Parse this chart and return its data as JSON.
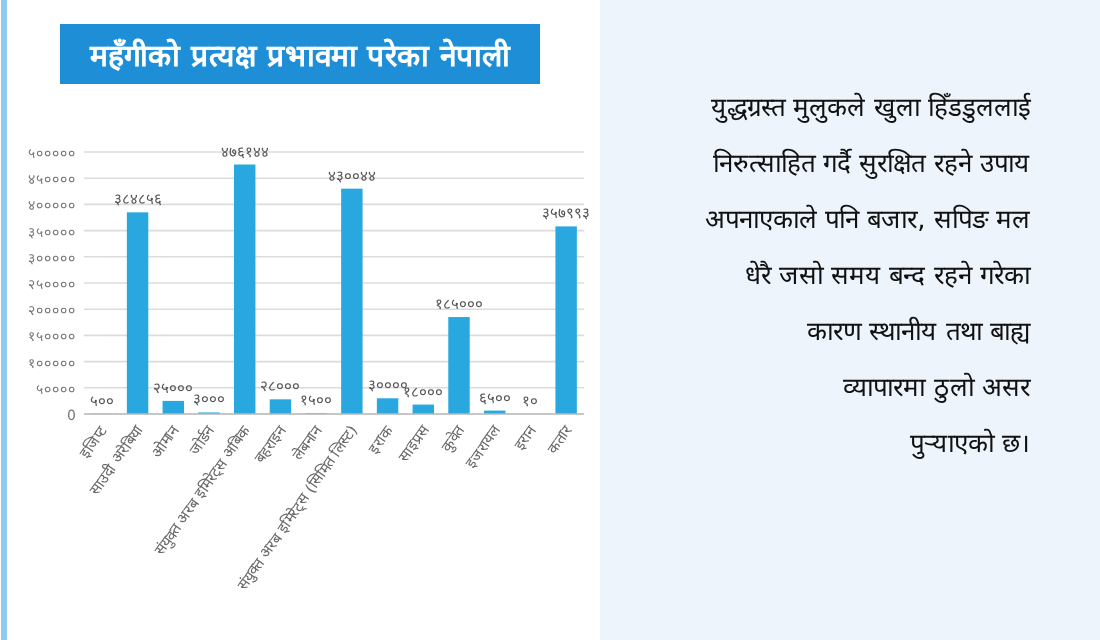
{
  "chart_data": {
    "type": "bar",
    "title": "महँगीको प्रत्यक्ष प्रभावमा परेका नेपाली",
    "categories": [
      "इजिप्ट",
      "साउदी अरेबिया",
      "ओमान",
      "जोर्डन",
      "संयुक्त अरब इमिरेट्स अबिक",
      "बहराइन",
      "लेबनान",
      "संयुक्त अरब इमिरेट्स (सिमित लिस्ट)",
      "इराक",
      "साइप्रस",
      "कुवेत",
      "इजरायल",
      "इरान",
      "कतार"
    ],
    "values": [
      500,
      384856,
      25000,
      3000,
      476144,
      28000,
      1500,
      430044,
      30000,
      18000,
      185000,
      6500,
      10,
      357993
    ],
    "value_labels": [
      "५००",
      "३८४८५६",
      "२५०००",
      "३०००",
      "४७६१४४",
      "२८०००",
      "१५००",
      "४३००४४",
      "३००००",
      "१८०००",
      "१८५०००",
      "६५००",
      "१०",
      "३५७९९३"
    ],
    "color": "#29a8e0",
    "ylim": [
      0,
      500000
    ],
    "yticks": [
      0,
      {
        "value": 50000,
        "label": "५००००"
      },
      {
        "value": 100000,
        "label": "१०००००"
      },
      {
        "value": 150000,
        "label": "१५००००"
      },
      {
        "value": 200000,
        "label": "२०००००"
      },
      {
        "value": 250000,
        "label": "२५००००"
      },
      {
        "value": 300000,
        "label": "३०००००"
      },
      {
        "value": 350000,
        "label": "३५००००"
      },
      {
        "value": 400000,
        "label": "४०००००"
      },
      {
        "value": 450000,
        "label": "४५००००"
      },
      {
        "value": 500000,
        "label": "५०००००"
      }
    ],
    "grid": "y",
    "annotations": [
      "युद्धग्रस्त मुलुकले खुला हिँडडुललाई\nनिरुत्साहित गर्दै सुरक्षित रहने उपाय\nअपनाएकाले पनि बजार, सपिङ मल\nधेरै जसो समय बन्द रहने गरेका\nकारण स्थानीय तथा बाह्य\nव्यापारमा ठुलो असर\nपुऱ्याएको छ।"
    ]
  }
}
